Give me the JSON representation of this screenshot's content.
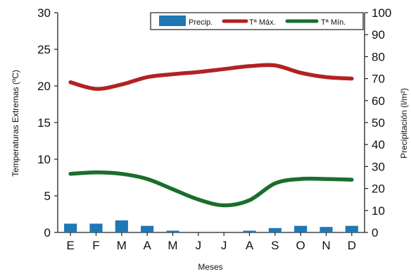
{
  "chart_data": {
    "type": "bar",
    "categories": [
      "E",
      "F",
      "M",
      "A",
      "M",
      "J",
      "J",
      "A",
      "S",
      "O",
      "N",
      "D"
    ],
    "series": [
      {
        "name": "Precip.",
        "type": "bar",
        "axis": "right",
        "color": "#1f77b4",
        "values": [
          4,
          4,
          5.5,
          3,
          0.8,
          0,
          0,
          0.8,
          2,
          3,
          2.5,
          3
        ]
      },
      {
        "name": "Tª Máx.",
        "type": "line",
        "axis": "left",
        "color": "#b22222",
        "values": [
          20.5,
          19.6,
          20.2,
          21.2,
          21.6,
          21.9,
          22.3,
          22.7,
          22.8,
          21.8,
          21.2,
          21.0
        ]
      },
      {
        "name": "Tª Mín.",
        "type": "line",
        "axis": "left",
        "color": "#1a6e2e",
        "values": [
          8.0,
          8.2,
          8.0,
          7.3,
          5.9,
          4.5,
          3.7,
          4.4,
          6.7,
          7.3,
          7.3,
          7.2
        ]
      }
    ],
    "xlabel": "Meses",
    "ylabel": "Temperaturas Extremas (ºC)",
    "y2label": "Precipitación (l/m²)",
    "ylim": [
      0,
      30
    ],
    "y2lim": [
      0,
      100
    ],
    "yticks": [
      "0",
      "5",
      "10",
      "15",
      "20",
      "25",
      "30"
    ],
    "y2ticks": [
      "0",
      "10",
      "20",
      "30",
      "40",
      "50",
      "60",
      "70",
      "80",
      "90",
      "100"
    ],
    "grid": false,
    "legend_position": "top-right"
  }
}
